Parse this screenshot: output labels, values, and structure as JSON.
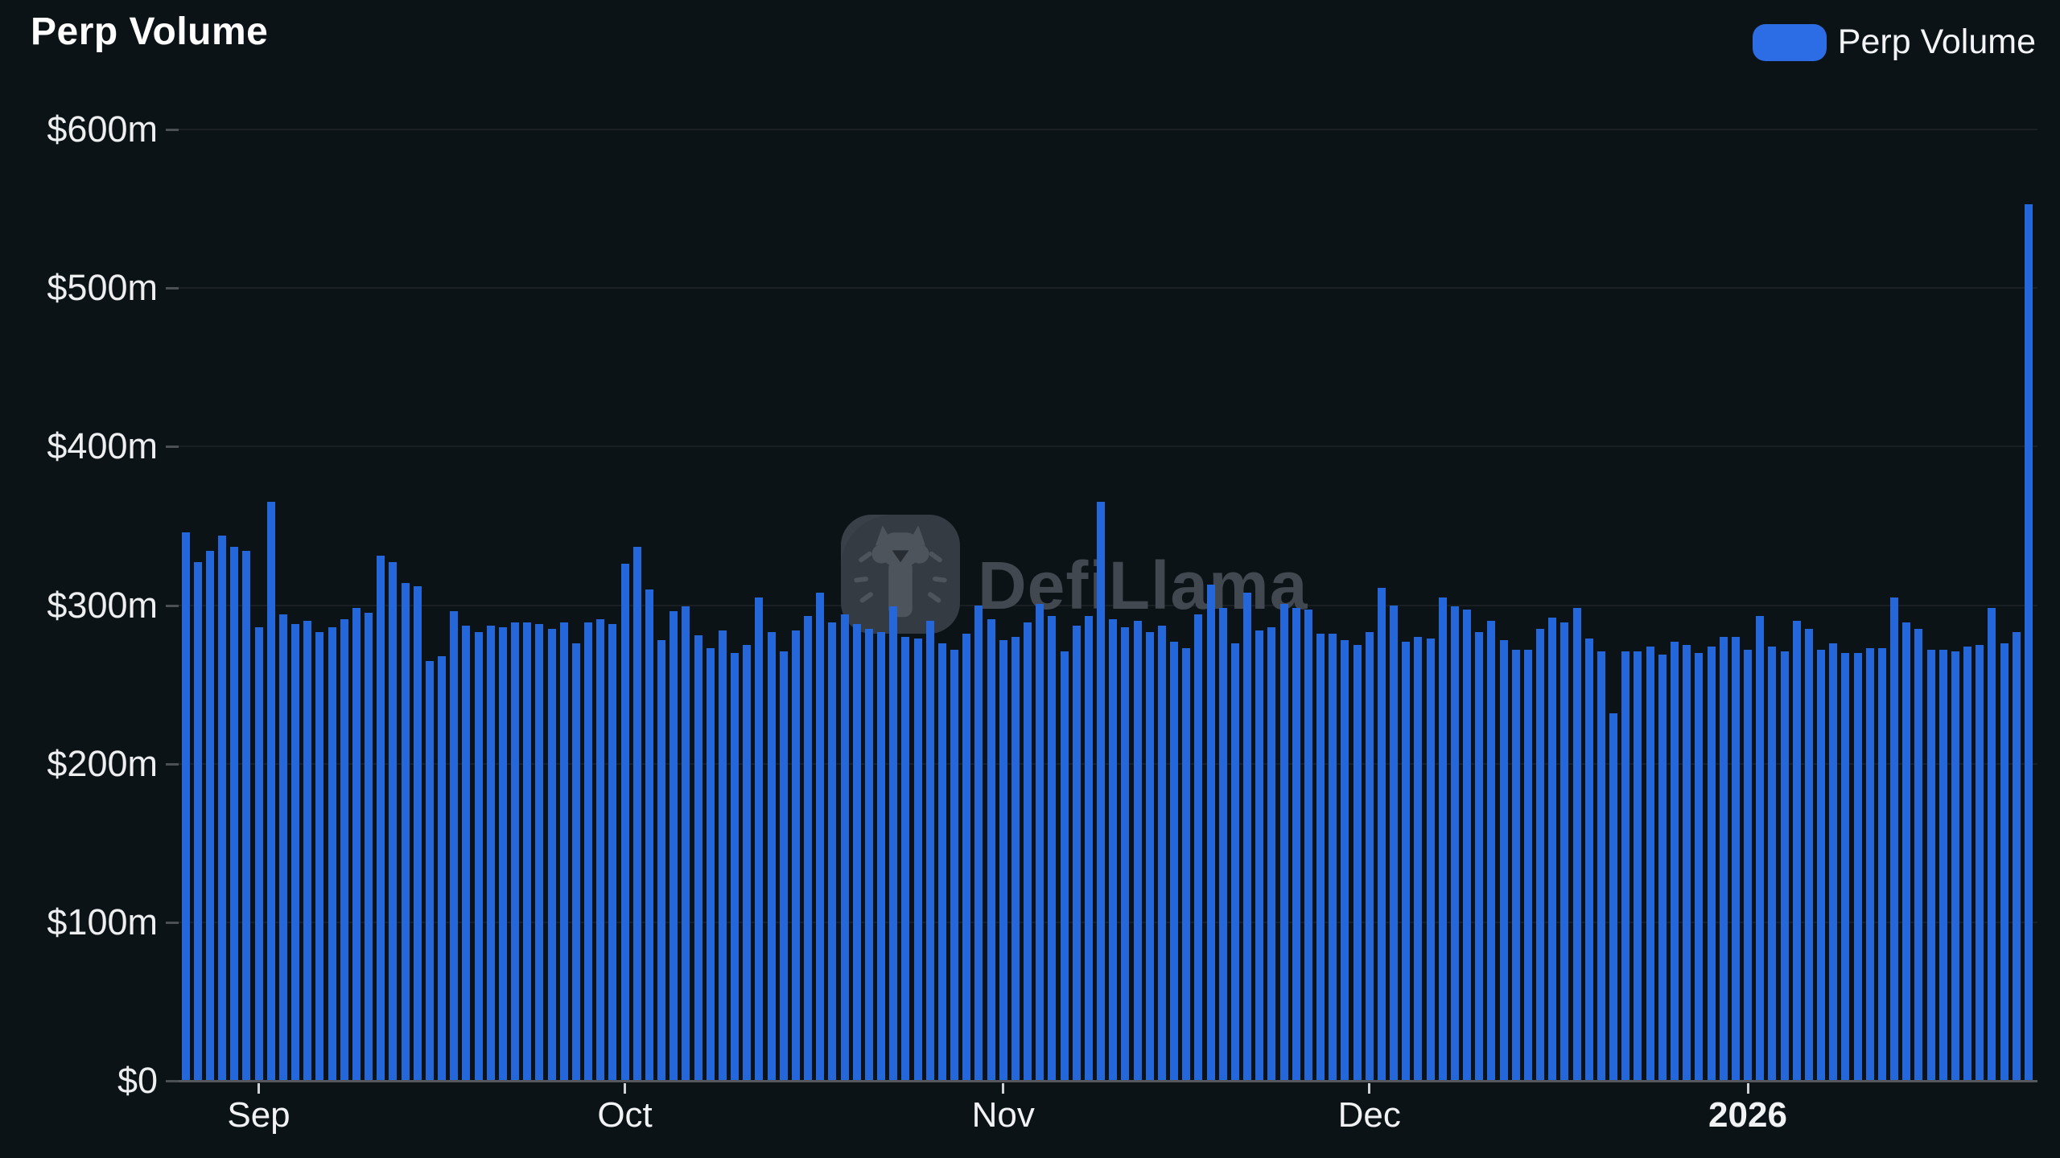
{
  "title": "Perp Volume",
  "legend": {
    "label": "Perp Volume",
    "swatch_color": "#2c6ce4"
  },
  "watermark": {
    "text": "DefiLlama",
    "icon": "defillama-llama-icon"
  },
  "colors": {
    "background": "#0c1317",
    "bar": "#2467da",
    "axis_line": "#54585c",
    "grid_line": "rgba(255,255,255,0.055)",
    "label_text": "#eceef0",
    "watermark_text": "#42484f"
  },
  "chart_data": {
    "type": "bar",
    "title": "Perp Volume",
    "series_name": "Perp Volume",
    "unit": "USD millions",
    "ylabel": "",
    "xlabel": "",
    "ylim": [
      0,
      600
    ],
    "grid": true,
    "legend_position": "top-right",
    "y_ticks": [
      {
        "label": "$600m",
        "value": 600
      },
      {
        "label": "$500m",
        "value": 500
      },
      {
        "label": "$400m",
        "value": 400
      },
      {
        "label": "$300m",
        "value": 300
      },
      {
        "label": "$200m",
        "value": 200
      },
      {
        "label": "$100m",
        "value": 100
      },
      {
        "label": "$0",
        "value": 0
      }
    ],
    "x_ticks": [
      {
        "label": "Sep",
        "bar_index": 6,
        "bold": false
      },
      {
        "label": "Oct",
        "bar_index": 36,
        "bold": false
      },
      {
        "label": "Nov",
        "bar_index": 67,
        "bold": false
      },
      {
        "label": "Dec",
        "bar_index": 97,
        "bold": false
      },
      {
        "label": "2026",
        "bar_index": 128,
        "bold": true
      }
    ],
    "values": [
      346,
      327,
      334,
      344,
      337,
      334,
      286,
      365,
      294,
      288,
      290,
      283,
      286,
      291,
      298,
      295,
      331,
      327,
      314,
      312,
      265,
      268,
      296,
      287,
      283,
      287,
      286,
      289,
      289,
      288,
      285,
      289,
      276,
      289,
      291,
      288,
      326,
      337,
      310,
      278,
      296,
      299,
      281,
      273,
      284,
      270,
      275,
      305,
      283,
      271,
      284,
      293,
      308,
      289,
      294,
      288,
      285,
      283,
      299,
      280,
      279,
      290,
      276,
      272,
      282,
      300,
      291,
      278,
      280,
      289,
      301,
      293,
      271,
      287,
      293,
      365,
      291,
      286,
      290,
      283,
      287,
      277,
      273,
      294,
      313,
      298,
      276,
      308,
      284,
      286,
      301,
      298,
      297,
      282,
      282,
      278,
      275,
      283,
      311,
      300,
      277,
      280,
      279,
      305,
      299,
      297,
      283,
      290,
      278,
      272,
      272,
      285,
      292,
      289,
      298,
      279,
      271,
      232,
      271,
      271,
      274,
      269,
      277,
      275,
      270,
      274,
      280,
      280,
      272,
      293,
      274,
      271,
      290,
      285,
      272,
      276,
      270,
      270,
      273,
      273,
      305,
      289,
      285,
      272,
      272,
      271,
      274,
      275,
      298,
      276,
      283,
      553
    ]
  }
}
